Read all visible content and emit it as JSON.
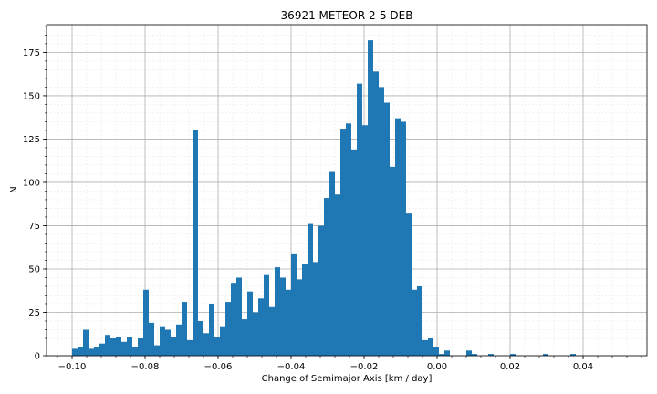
{
  "chart_data": {
    "type": "bar",
    "title": "36921 METEOR 2-5 DEB",
    "xlabel": "Change of Semimajor Axis [km / day]",
    "ylabel": "N",
    "xlim": [
      -0.107,
      0.0575
    ],
    "ylim": [
      0,
      191
    ],
    "bin_width": 0.0015,
    "grid": true,
    "minor_grid": true,
    "bar_color": "#1f77b4",
    "x_ticks": [
      -0.1,
      -0.08,
      -0.06,
      -0.04,
      -0.02,
      0.0,
      0.02,
      0.04
    ],
    "x_tick_labels": [
      "−0.10",
      "−0.08",
      "−0.06",
      "−0.04",
      "−0.02",
      "0.00",
      "0.02",
      "0.04"
    ],
    "y_ticks": [
      0,
      25,
      50,
      75,
      100,
      125,
      150,
      175
    ],
    "y_tick_labels": [
      "0",
      "25",
      "50",
      "75",
      "100",
      "125",
      "150",
      "175"
    ],
    "bins": [
      {
        "x": -0.1,
        "count": 4
      },
      {
        "x": -0.0985,
        "count": 5
      },
      {
        "x": -0.097,
        "count": 15
      },
      {
        "x": -0.0955,
        "count": 4
      },
      {
        "x": -0.094,
        "count": 5
      },
      {
        "x": -0.0925,
        "count": 7
      },
      {
        "x": -0.091,
        "count": 12
      },
      {
        "x": -0.0895,
        "count": 10
      },
      {
        "x": -0.088,
        "count": 11
      },
      {
        "x": -0.0865,
        "count": 8
      },
      {
        "x": -0.085,
        "count": 11
      },
      {
        "x": -0.0835,
        "count": 5
      },
      {
        "x": -0.082,
        "count": 10
      },
      {
        "x": -0.0805,
        "count": 38
      },
      {
        "x": -0.079,
        "count": 19
      },
      {
        "x": -0.0775,
        "count": 6
      },
      {
        "x": -0.076,
        "count": 17
      },
      {
        "x": -0.0745,
        "count": 15
      },
      {
        "x": -0.073,
        "count": 11
      },
      {
        "x": -0.0715,
        "count": 18
      },
      {
        "x": -0.07,
        "count": 31
      },
      {
        "x": -0.0685,
        "count": 9
      },
      {
        "x": -0.067,
        "count": 130
      },
      {
        "x": -0.0655,
        "count": 20
      },
      {
        "x": -0.064,
        "count": 13
      },
      {
        "x": -0.0625,
        "count": 30
      },
      {
        "x": -0.061,
        "count": 11
      },
      {
        "x": -0.0595,
        "count": 17
      },
      {
        "x": -0.058,
        "count": 31
      },
      {
        "x": -0.0565,
        "count": 42
      },
      {
        "x": -0.055,
        "count": 45
      },
      {
        "x": -0.0535,
        "count": 21
      },
      {
        "x": -0.052,
        "count": 37
      },
      {
        "x": -0.0505,
        "count": 25
      },
      {
        "x": -0.049,
        "count": 33
      },
      {
        "x": -0.0475,
        "count": 47
      },
      {
        "x": -0.046,
        "count": 28
      },
      {
        "x": -0.0445,
        "count": 51
      },
      {
        "x": -0.043,
        "count": 45
      },
      {
        "x": -0.0415,
        "count": 38
      },
      {
        "x": -0.04,
        "count": 59
      },
      {
        "x": -0.0385,
        "count": 44
      },
      {
        "x": -0.037,
        "count": 53
      },
      {
        "x": -0.0355,
        "count": 76
      },
      {
        "x": -0.034,
        "count": 54
      },
      {
        "x": -0.0325,
        "count": 75
      },
      {
        "x": -0.031,
        "count": 91
      },
      {
        "x": -0.0295,
        "count": 106
      },
      {
        "x": -0.028,
        "count": 93
      },
      {
        "x": -0.0265,
        "count": 131
      },
      {
        "x": -0.025,
        "count": 134
      },
      {
        "x": -0.0235,
        "count": 119
      },
      {
        "x": -0.022,
        "count": 157
      },
      {
        "x": -0.0205,
        "count": 133
      },
      {
        "x": -0.019,
        "count": 182
      },
      {
        "x": -0.0175,
        "count": 164
      },
      {
        "x": -0.016,
        "count": 155
      },
      {
        "x": -0.0145,
        "count": 146
      },
      {
        "x": -0.013,
        "count": 109
      },
      {
        "x": -0.0115,
        "count": 137
      },
      {
        "x": -0.01,
        "count": 135
      },
      {
        "x": -0.0085,
        "count": 82
      },
      {
        "x": -0.007,
        "count": 38
      },
      {
        "x": -0.0055,
        "count": 40
      },
      {
        "x": -0.004,
        "count": 9
      },
      {
        "x": -0.0025,
        "count": 10
      },
      {
        "x": -0.001,
        "count": 5
      },
      {
        "x": 0.0005,
        "count": 1
      },
      {
        "x": 0.002,
        "count": 3
      },
      {
        "x": 0.0035,
        "count": 0
      },
      {
        "x": 0.005,
        "count": 0
      },
      {
        "x": 0.0065,
        "count": 0
      },
      {
        "x": 0.008,
        "count": 3
      },
      {
        "x": 0.0095,
        "count": 1
      },
      {
        "x": 0.011,
        "count": 0
      },
      {
        "x": 0.0125,
        "count": 0
      },
      {
        "x": 0.014,
        "count": 1
      },
      {
        "x": 0.0155,
        "count": 0
      },
      {
        "x": 0.017,
        "count": 0
      },
      {
        "x": 0.0185,
        "count": 0
      },
      {
        "x": 0.02,
        "count": 1
      },
      {
        "x": 0.029,
        "count": 1
      },
      {
        "x": 0.0365,
        "count": 1
      }
    ]
  }
}
